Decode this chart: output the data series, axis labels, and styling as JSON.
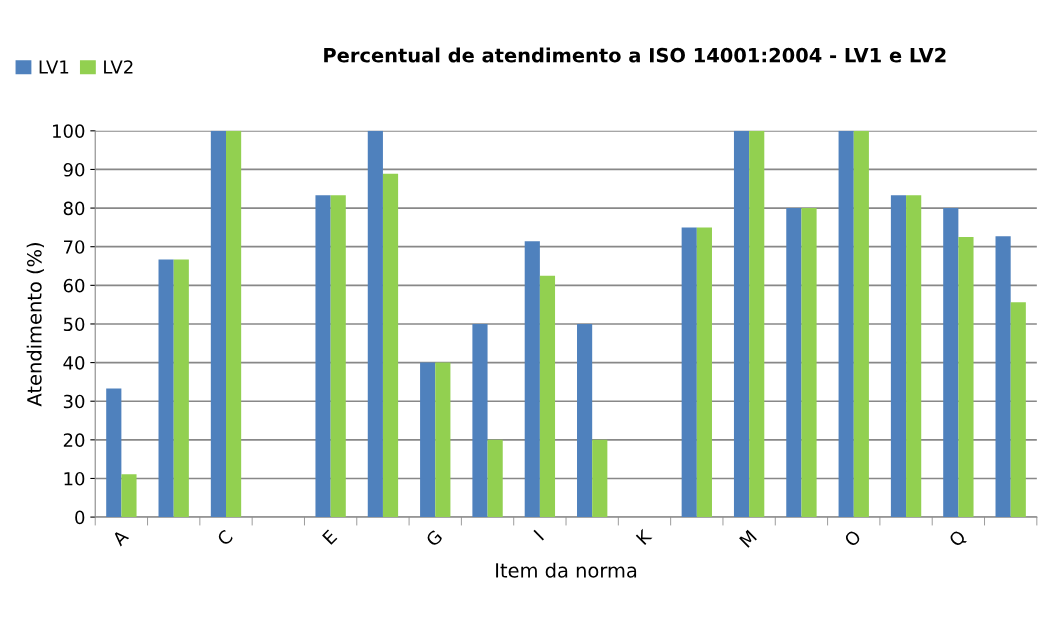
{
  "chart_data": {
    "type": "bar",
    "title": "Percentual de atendimento a ISO 14001:2004 - LV1 e LV2",
    "xlabel": "Item da norma",
    "ylabel": "Atendimento (%)",
    "categories": [
      "A",
      null,
      "C",
      null,
      "E",
      null,
      "G",
      null,
      "I",
      null,
      "K",
      null,
      "M",
      null,
      "O",
      null,
      "Q",
      null
    ],
    "series": [
      {
        "name": "LV1",
        "color": "#4f81bd",
        "values": [
          33.3,
          66.7,
          100,
          null,
          83.3,
          100,
          40,
          50,
          71.4,
          50,
          null,
          75,
          100,
          80,
          100,
          83.3,
          80,
          72.7
        ]
      },
      {
        "name": "LV2",
        "color": "#92d050",
        "values": [
          11.1,
          66.7,
          100,
          null,
          83.3,
          88.9,
          40,
          20,
          62.5,
          20,
          null,
          75,
          100,
          80,
          100,
          83.3,
          72.5,
          55.6
        ]
      }
    ],
    "ylim": [
      0,
      100
    ],
    "yticks": [
      0,
      10,
      20,
      30,
      40,
      50,
      60,
      70,
      80,
      90,
      100
    ],
    "grid": "y",
    "legend": "top left"
  }
}
